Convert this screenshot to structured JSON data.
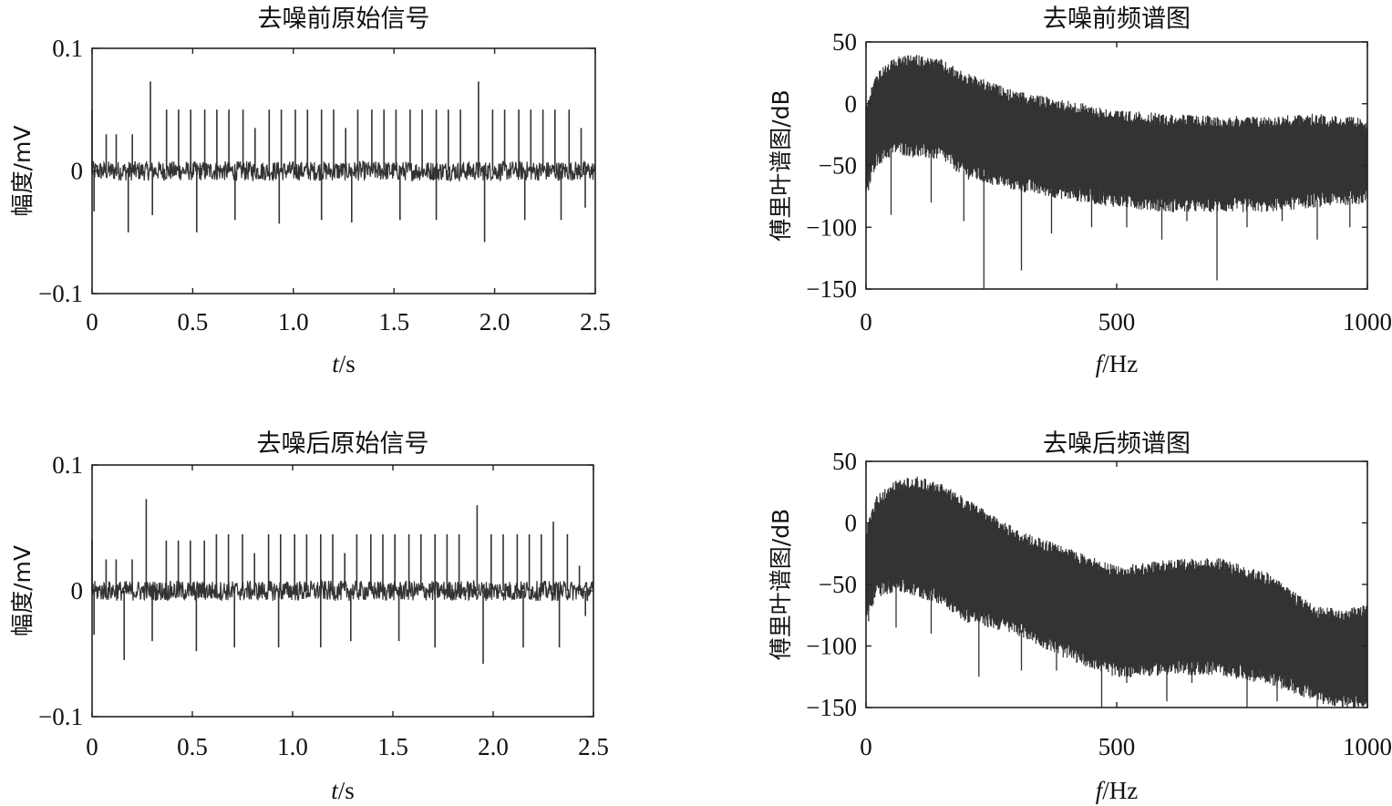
{
  "chart_data": [
    {
      "type": "line",
      "title": "去噪前原始信号",
      "xlabel_italic": "t",
      "xlabel_rest": "/s",
      "ylabel": "幅度/mV",
      "xlim": [
        0,
        2.5
      ],
      "ylim": [
        -0.1,
        0.1
      ],
      "xticks": [
        0,
        0.5,
        1.0,
        1.5,
        2.0,
        2.5
      ],
      "xtick_labels": [
        "0",
        "0.5",
        "1.0",
        "1.5",
        "2.0",
        "2.5"
      ],
      "yticks": [
        -0.1,
        0,
        0.1
      ],
      "ytick_labels": [
        "−0.1",
        "0",
        "0.1"
      ],
      "series": [
        {
          "spikes_pos": [
            [
              0.0,
              0.05
            ],
            [
              0.07,
              0.03
            ],
            [
              0.12,
              0.03
            ],
            [
              0.2,
              0.03
            ],
            [
              0.29,
              0.073
            ],
            [
              0.37,
              0.05
            ],
            [
              0.43,
              0.05
            ],
            [
              0.49,
              0.05
            ],
            [
              0.56,
              0.05
            ],
            [
              0.62,
              0.05
            ],
            [
              0.68,
              0.05
            ],
            [
              0.75,
              0.05
            ],
            [
              0.81,
              0.035
            ],
            [
              0.88,
              0.05
            ],
            [
              0.94,
              0.05
            ],
            [
              1.01,
              0.05
            ],
            [
              1.07,
              0.05
            ],
            [
              1.14,
              0.05
            ],
            [
              1.2,
              0.05
            ],
            [
              1.26,
              0.035
            ],
            [
              1.32,
              0.05
            ],
            [
              1.39,
              0.05
            ],
            [
              1.45,
              0.05
            ],
            [
              1.51,
              0.05
            ],
            [
              1.58,
              0.05
            ],
            [
              1.64,
              0.05
            ],
            [
              1.71,
              0.05
            ],
            [
              1.77,
              0.05
            ],
            [
              1.83,
              0.05
            ],
            [
              1.92,
              0.073
            ],
            [
              1.99,
              0.05
            ],
            [
              2.05,
              0.05
            ],
            [
              2.12,
              0.05
            ],
            [
              2.18,
              0.05
            ],
            [
              2.24,
              0.05
            ],
            [
              2.3,
              0.05
            ],
            [
              2.37,
              0.05
            ],
            [
              2.43,
              0.035
            ]
          ],
          "spikes_neg": [
            [
              0.01,
              -0.033
            ],
            [
              0.18,
              -0.05
            ],
            [
              0.3,
              -0.036
            ],
            [
              0.52,
              -0.05
            ],
            [
              0.71,
              -0.04
            ],
            [
              0.93,
              -0.043
            ],
            [
              1.14,
              -0.04
            ],
            [
              1.29,
              -0.042
            ],
            [
              1.53,
              -0.04
            ],
            [
              1.71,
              -0.04
            ],
            [
              1.95,
              -0.058
            ],
            [
              2.15,
              -0.04
            ],
            [
              2.33,
              -0.04
            ],
            [
              2.45,
              -0.03
            ]
          ],
          "noise_amplitude": 0.008
        }
      ]
    },
    {
      "type": "line",
      "title": "去噪前频谱图",
      "xlabel_italic": "f",
      "xlabel_rest": "/Hz",
      "ylabel": "傅里叶谱图/dB",
      "xlim": [
        0,
        1000
      ],
      "ylim": [
        -150,
        50
      ],
      "xticks": [
        0,
        500,
        1000
      ],
      "xtick_labels": [
        "0",
        "500",
        "1000"
      ],
      "yticks": [
        -150,
        -100,
        -50,
        0,
        50
      ],
      "ytick_labels": [
        "−150",
        "−100",
        "−50",
        "0",
        "50"
      ],
      "series": [
        {
          "upper_envelope": [
            [
              0,
              0
            ],
            [
              20,
              25
            ],
            [
              60,
              38
            ],
            [
              100,
              40
            ],
            [
              150,
              36
            ],
            [
              200,
              25
            ],
            [
              300,
              10
            ],
            [
              400,
              3
            ],
            [
              500,
              -5
            ],
            [
              600,
              -8
            ],
            [
              700,
              -10
            ],
            [
              800,
              -10
            ],
            [
              900,
              -8
            ],
            [
              1000,
              -12
            ]
          ],
          "lower_envelope": [
            [
              0,
              -70
            ],
            [
              20,
              -45
            ],
            [
              60,
              -35
            ],
            [
              100,
              -38
            ],
            [
              150,
              -40
            ],
            [
              200,
              -55
            ],
            [
              300,
              -65
            ],
            [
              400,
              -72
            ],
            [
              500,
              -78
            ],
            [
              600,
              -82
            ],
            [
              700,
              -82
            ],
            [
              800,
              -82
            ],
            [
              900,
              -78
            ],
            [
              1000,
              -75
            ]
          ],
          "deep_dips": [
            [
              5,
              -70
            ],
            [
              50,
              -90
            ],
            [
              130,
              -80
            ],
            [
              195,
              -95
            ],
            [
              235,
              -150
            ],
            [
              310,
              -135
            ],
            [
              370,
              -105
            ],
            [
              450,
              -100
            ],
            [
              520,
              -100
            ],
            [
              590,
              -110
            ],
            [
              640,
              -95
            ],
            [
              700,
              -143
            ],
            [
              760,
              -100
            ],
            [
              830,
              -95
            ],
            [
              900,
              -110
            ],
            [
              965,
              -100
            ]
          ]
        }
      ]
    },
    {
      "type": "line",
      "title": "去噪后原始信号",
      "xlabel_italic": "t",
      "xlabel_rest": "/s",
      "ylabel": "幅度/mV",
      "xlim": [
        0,
        2.5
      ],
      "ylim": [
        -0.1,
        0.1
      ],
      "xticks": [
        0,
        0.5,
        1.0,
        1.5,
        2.0,
        2.5
      ],
      "xtick_labels": [
        "0",
        "0.5",
        "1.0",
        "1.5",
        "2.0",
        "2.5"
      ],
      "yticks": [
        -0.1,
        0,
        0.1
      ],
      "ytick_labels": [
        "−0.1",
        "0",
        "0.1"
      ],
      "series": [
        {
          "spikes_pos": [
            [
              0.0,
              0.04
            ],
            [
              0.07,
              0.025
            ],
            [
              0.12,
              0.025
            ],
            [
              0.2,
              0.025
            ],
            [
              0.27,
              0.073
            ],
            [
              0.37,
              0.04
            ],
            [
              0.43,
              0.04
            ],
            [
              0.49,
              0.04
            ],
            [
              0.56,
              0.04
            ],
            [
              0.62,
              0.045
            ],
            [
              0.68,
              0.045
            ],
            [
              0.75,
              0.045
            ],
            [
              0.81,
              0.03
            ],
            [
              0.88,
              0.045
            ],
            [
              0.94,
              0.045
            ],
            [
              1.01,
              0.045
            ],
            [
              1.07,
              0.045
            ],
            [
              1.14,
              0.045
            ],
            [
              1.2,
              0.045
            ],
            [
              1.26,
              0.03
            ],
            [
              1.32,
              0.045
            ],
            [
              1.39,
              0.045
            ],
            [
              1.45,
              0.045
            ],
            [
              1.51,
              0.045
            ],
            [
              1.58,
              0.045
            ],
            [
              1.64,
              0.045
            ],
            [
              1.71,
              0.045
            ],
            [
              1.77,
              0.045
            ],
            [
              1.83,
              0.045
            ],
            [
              1.92,
              0.068
            ],
            [
              1.99,
              0.045
            ],
            [
              2.05,
              0.045
            ],
            [
              2.12,
              0.045
            ],
            [
              2.18,
              0.045
            ],
            [
              2.24,
              0.045
            ],
            [
              2.3,
              0.055
            ],
            [
              2.37,
              0.045
            ],
            [
              2.43,
              0.02
            ]
          ],
          "spikes_neg": [
            [
              0.01,
              -0.035
            ],
            [
              0.16,
              -0.055
            ],
            [
              0.3,
              -0.04
            ],
            [
              0.52,
              -0.048
            ],
            [
              0.71,
              -0.045
            ],
            [
              0.93,
              -0.045
            ],
            [
              1.14,
              -0.045
            ],
            [
              1.29,
              -0.04
            ],
            [
              1.53,
              -0.04
            ],
            [
              1.71,
              -0.045
            ],
            [
              1.95,
              -0.058
            ],
            [
              2.15,
              -0.045
            ],
            [
              2.33,
              -0.045
            ],
            [
              2.46,
              -0.02
            ]
          ],
          "noise_amplitude": 0.008
        }
      ]
    },
    {
      "type": "line",
      "title": "去噪后频谱图",
      "xlabel_italic": "f",
      "xlabel_rest": "/Hz",
      "ylabel": "傅里叶谱图/dB",
      "xlim": [
        0,
        1000
      ],
      "ylim": [
        -150,
        50
      ],
      "xticks": [
        0,
        500,
        1000
      ],
      "xtick_labels": [
        "0",
        "500",
        "1000"
      ],
      "yticks": [
        -150,
        -100,
        -50,
        0,
        50
      ],
      "ytick_labels": [
        "−150",
        "−100",
        "−50",
        "0",
        "50"
      ],
      "series": [
        {
          "upper_envelope": [
            [
              0,
              -5
            ],
            [
              20,
              22
            ],
            [
              60,
              35
            ],
            [
              100,
              38
            ],
            [
              150,
              32
            ],
            [
              200,
              20
            ],
            [
              300,
              -5
            ],
            [
              400,
              -20
            ],
            [
              500,
              -35
            ],
            [
              600,
              -30
            ],
            [
              700,
              -28
            ],
            [
              800,
              -40
            ],
            [
              850,
              -55
            ],
            [
              900,
              -68
            ],
            [
              950,
              -70
            ],
            [
              1000,
              -65
            ]
          ],
          "lower_envelope": [
            [
              0,
              -75
            ],
            [
              20,
              -55
            ],
            [
              60,
              -50
            ],
            [
              100,
              -55
            ],
            [
              150,
              -60
            ],
            [
              200,
              -75
            ],
            [
              300,
              -85
            ],
            [
              400,
              -105
            ],
            [
              500,
              -120
            ],
            [
              600,
              -118
            ],
            [
              700,
              -118
            ],
            [
              800,
              -125
            ],
            [
              900,
              -140
            ],
            [
              950,
              -145
            ],
            [
              1000,
              -148
            ]
          ],
          "deep_dips": [
            [
              5,
              -80
            ],
            [
              60,
              -85
            ],
            [
              130,
              -90
            ],
            [
              225,
              -125
            ],
            [
              310,
              -120
            ],
            [
              380,
              -120
            ],
            [
              470,
              -150
            ],
            [
              520,
              -130
            ],
            [
              600,
              -145
            ],
            [
              650,
              -130
            ],
            [
              760,
              -150
            ],
            [
              820,
              -145
            ],
            [
              900,
              -150
            ],
            [
              960,
              -150
            ],
            [
              1000,
              -150
            ]
          ]
        }
      ]
    }
  ]
}
